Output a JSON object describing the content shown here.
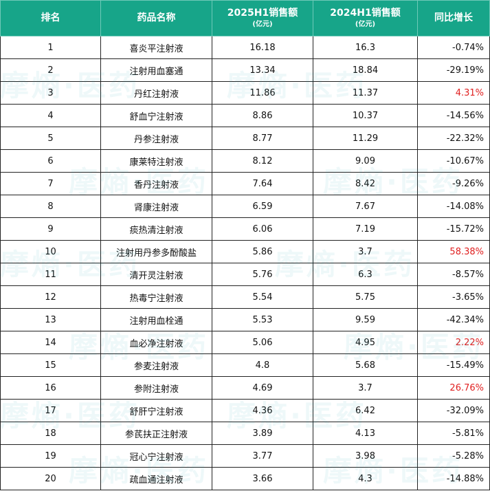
{
  "header": {
    "rank": "排名",
    "name": "药品名称",
    "sales_2025": "2025H1销售额",
    "sales_2025_unit": "(亿元)",
    "sales_2024": "2024H1销售额",
    "sales_2024_unit": "(亿元)",
    "growth": "同比增长"
  },
  "accent_color": "#17a589",
  "positive_color": "#e02020",
  "watermark_text": "摩熵·医药",
  "rows": [
    {
      "rank": "1",
      "name": "喜炎平注射液",
      "s2025": "16.18",
      "s2024": "16.3",
      "growth": "-0.74%",
      "positive": false
    },
    {
      "rank": "2",
      "name": "注射用血塞通",
      "s2025": "13.34",
      "s2024": "18.84",
      "growth": "-29.19%",
      "positive": false
    },
    {
      "rank": "3",
      "name": "丹红注射液",
      "s2025": "11.86",
      "s2024": "11.37",
      "growth": "4.31%",
      "positive": true
    },
    {
      "rank": "4",
      "name": "舒血宁注射液",
      "s2025": "8.86",
      "s2024": "10.37",
      "growth": "-14.56%",
      "positive": false
    },
    {
      "rank": "5",
      "name": "丹参注射液",
      "s2025": "8.77",
      "s2024": "11.29",
      "growth": "-22.32%",
      "positive": false
    },
    {
      "rank": "6",
      "name": "康莱特注射液",
      "s2025": "8.12",
      "s2024": "9.09",
      "growth": "-10.67%",
      "positive": false
    },
    {
      "rank": "7",
      "name": "香丹注射液",
      "s2025": "7.64",
      "s2024": "8.42",
      "growth": "-9.26%",
      "positive": false
    },
    {
      "rank": "8",
      "name": "肾康注射液",
      "s2025": "6.59",
      "s2024": "7.67",
      "growth": "-14.08%",
      "positive": false
    },
    {
      "rank": "9",
      "name": "痰热清注射液",
      "s2025": "6.06",
      "s2024": "7.19",
      "growth": "-15.72%",
      "positive": false
    },
    {
      "rank": "10",
      "name": "注射用丹参多酚酸盐",
      "s2025": "5.86",
      "s2024": "3.7",
      "growth": "58.38%",
      "positive": true
    },
    {
      "rank": "11",
      "name": "清开灵注射液",
      "s2025": "5.76",
      "s2024": "6.3",
      "growth": "-8.57%",
      "positive": false
    },
    {
      "rank": "12",
      "name": "热毒宁注射液",
      "s2025": "5.54",
      "s2024": "5.75",
      "growth": "-3.65%",
      "positive": false
    },
    {
      "rank": "13",
      "name": "注射用血栓通",
      "s2025": "5.53",
      "s2024": "9.59",
      "growth": "-42.34%",
      "positive": false
    },
    {
      "rank": "14",
      "name": "血必净注射液",
      "s2025": "5.06",
      "s2024": "4.95",
      "growth": "2.22%",
      "positive": true
    },
    {
      "rank": "15",
      "name": "参麦注射液",
      "s2025": "4.8",
      "s2024": "5.68",
      "growth": "-15.49%",
      "positive": false
    },
    {
      "rank": "16",
      "name": "参附注射液",
      "s2025": "4.69",
      "s2024": "3.7",
      "growth": "26.76%",
      "positive": true
    },
    {
      "rank": "17",
      "name": "舒肝宁注射液",
      "s2025": "4.36",
      "s2024": "6.42",
      "growth": "-32.09%",
      "positive": false
    },
    {
      "rank": "18",
      "name": "参芪扶正注射液",
      "s2025": "3.89",
      "s2024": "4.13",
      "growth": "-5.81%",
      "positive": false
    },
    {
      "rank": "19",
      "name": "冠心宁注射液",
      "s2025": "3.77",
      "s2024": "3.98",
      "growth": "-5.28%",
      "positive": false
    },
    {
      "rank": "20",
      "name": "疏血通注射液",
      "s2025": "3.66",
      "s2024": "4.3",
      "growth": "-14.88%",
      "positive": false
    }
  ]
}
